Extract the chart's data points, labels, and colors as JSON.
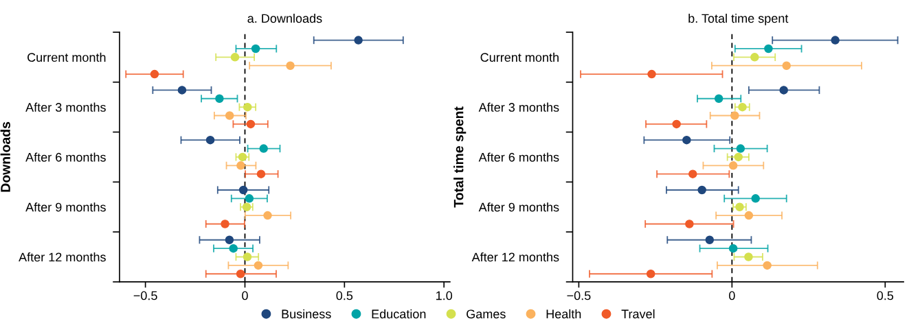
{
  "chart_data": [
    {
      "type": "scatter",
      "orientation": "horizontal",
      "title": "a. Downloads",
      "ylabel": "Downloads",
      "categories": [
        "Current month",
        "After 3 months",
        "After 6 months",
        "After 9 months",
        "After 12 months"
      ],
      "marker": "circle",
      "grid": false,
      "legend": "bottom",
      "xlim": [
        -0.63,
        1.03
      ],
      "xticks": [
        -0.5,
        0,
        0.5,
        {
          "value": 1,
          "label": "1.0"
        }
      ],
      "ref_lines": [
        {
          "axis": "x",
          "value": 0,
          "color": "#000000",
          "line_style": "dashed"
        }
      ],
      "series": [
        {
          "name": "Business",
          "color": "#1f477d",
          "values": [
            0.57,
            -0.316,
            -0.174,
            -0.008,
            -0.078
          ],
          "errors": [
            [
              0.346,
              0.795
            ],
            [
              -0.463,
              -0.169
            ],
            [
              -0.321,
              -0.026
            ],
            [
              -0.137,
              0.12
            ],
            [
              -0.228,
              0.074
            ]
          ]
        },
        {
          "name": "Education",
          "color": "#00a3a6",
          "values": [
            0.054,
            -0.128,
            0.094,
            0.022,
            -0.058
          ],
          "errors": [
            [
              -0.045,
              0.158
            ],
            [
              -0.219,
              -0.038
            ],
            [
              0.014,
              0.176
            ],
            [
              -0.068,
              0.112
            ],
            [
              -0.157,
              0.04
            ]
          ]
        },
        {
          "name": "Games",
          "color": "#d4e04e",
          "values": [
            -0.05,
            0.013,
            -0.012,
            0.009,
            0.012
          ],
          "errors": [
            [
              -0.146,
              0.047
            ],
            [
              -0.028,
              0.054
            ],
            [
              -0.045,
              0.02
            ],
            [
              -0.022,
              0.039
            ],
            [
              -0.045,
              0.068
            ]
          ]
        },
        {
          "name": "Health",
          "color": "#fbb25e",
          "values": [
            0.228,
            -0.077,
            -0.021,
            0.114,
            0.067
          ],
          "errors": [
            [
              0.023,
              0.433
            ],
            [
              -0.154,
              0.005
            ],
            [
              -0.093,
              0.055
            ],
            [
              0.001,
              0.23
            ],
            [
              -0.083,
              0.217
            ]
          ]
        },
        {
          "name": "Travel",
          "color": "#f05a28",
          "values": [
            -0.454,
            0.029,
            0.081,
            -0.1,
            -0.022
          ],
          "errors": [
            [
              -0.598,
              -0.31
            ],
            [
              -0.059,
              0.115
            ],
            [
              0.002,
              0.166
            ],
            [
              -0.196,
              -0.002
            ],
            [
              -0.196,
              0.157
            ]
          ]
        }
      ]
    },
    {
      "type": "scatter",
      "orientation": "horizontal",
      "title": "b. Total time spent",
      "ylabel": "Total time spent",
      "categories": [
        "Current month",
        "After 3 months",
        "After 6 months",
        "After 9 months",
        "After 12 months"
      ],
      "marker": "circle",
      "grid": false,
      "legend": "bottom",
      "xlim": [
        -0.52,
        0.56
      ],
      "xticks": [
        -0.5,
        0,
        0.5
      ],
      "ref_lines": [
        {
          "axis": "x",
          "value": 0,
          "color": "#000000",
          "line_style": "dashed"
        }
      ],
      "series": [
        {
          "name": "Business",
          "color": "#1f477d",
          "values": [
            0.337,
            0.169,
            -0.148,
            -0.098,
            -0.073
          ],
          "errors": [
            [
              0.132,
              0.541
            ],
            [
              0.055,
              0.285
            ],
            [
              -0.287,
              -0.007
            ],
            [
              -0.214,
              0.021
            ],
            [
              -0.211,
              0.063
            ]
          ]
        },
        {
          "name": "Education",
          "color": "#00a3a6",
          "values": [
            0.119,
            -0.043,
            0.028,
            0.077,
            0.004
          ],
          "errors": [
            [
              0.01,
              0.227
            ],
            [
              -0.113,
              0.029
            ],
            [
              -0.058,
              0.115
            ],
            [
              -0.025,
              0.178
            ],
            [
              -0.105,
              0.117
            ]
          ]
        },
        {
          "name": "Games",
          "color": "#d4e04e",
          "values": [
            0.074,
            0.034,
            0.021,
            0.025,
            0.054
          ],
          "errors": [
            [
              0.006,
              0.141
            ],
            [
              0.01,
              0.057
            ],
            [
              -0.015,
              0.055
            ],
            [
              0.004,
              0.046
            ],
            [
              0.007,
              0.1
            ]
          ]
        },
        {
          "name": "Health",
          "color": "#fbb25e",
          "values": [
            0.178,
            0.009,
            0.004,
            0.055,
            0.115
          ],
          "errors": [
            [
              -0.066,
              0.423
            ],
            [
              -0.071,
              0.09
            ],
            [
              -0.094,
              0.103
            ],
            [
              -0.052,
              0.163
            ],
            [
              -0.048,
              0.279
            ]
          ]
        },
        {
          "name": "Travel",
          "color": "#f05a28",
          "values": [
            -0.262,
            -0.181,
            -0.128,
            -0.139,
            -0.265
          ],
          "errors": [
            [
              -0.494,
              -0.031
            ],
            [
              -0.281,
              -0.083
            ],
            [
              -0.245,
              -0.009
            ],
            [
              -0.283,
              0.005
            ],
            [
              -0.465,
              -0.065
            ]
          ]
        }
      ]
    }
  ]
}
